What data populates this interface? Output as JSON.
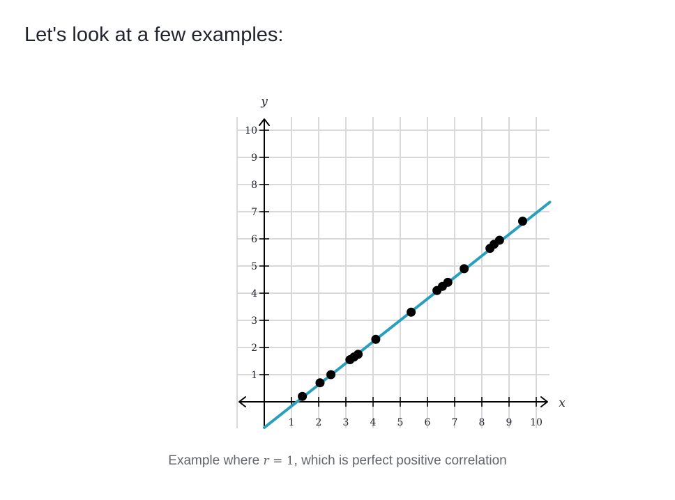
{
  "heading": "Let's look at a few examples:",
  "caption": {
    "prefix": "Example where ",
    "var": "r",
    "eq": "= 1",
    "suffix": ", which is perfect positive correlation"
  },
  "colors": {
    "fit_line": "#2a9fbc",
    "points": "#000000",
    "grid": "#d9d9d9",
    "axis": "#000000"
  },
  "chart_data": {
    "type": "scatter",
    "xlabel": "x",
    "ylabel": "y",
    "xlim": [
      -1,
      10.5
    ],
    "ylim": [
      -1,
      10
    ],
    "x_ticks": [
      1,
      2,
      3,
      4,
      5,
      6,
      7,
      8,
      9,
      10
    ],
    "y_ticks": [
      1,
      2,
      3,
      4,
      5,
      6,
      7,
      8,
      9,
      10
    ],
    "grid": true,
    "points": [
      {
        "x": 1.4,
        "y": 0.2
      },
      {
        "x": 2.05,
        "y": 0.7
      },
      {
        "x": 2.45,
        "y": 1.0
      },
      {
        "x": 3.15,
        "y": 1.55
      },
      {
        "x": 3.3,
        "y": 1.65
      },
      {
        "x": 3.45,
        "y": 1.75
      },
      {
        "x": 4.1,
        "y": 2.3
      },
      {
        "x": 5.4,
        "y": 3.3
      },
      {
        "x": 6.35,
        "y": 4.1
      },
      {
        "x": 6.55,
        "y": 4.25
      },
      {
        "x": 6.75,
        "y": 4.4
      },
      {
        "x": 7.35,
        "y": 4.9
      },
      {
        "x": 8.3,
        "y": 5.65
      },
      {
        "x": 8.45,
        "y": 5.8
      },
      {
        "x": 8.65,
        "y": 5.95
      },
      {
        "x": 9.5,
        "y": 6.65
      }
    ],
    "fit_line": {
      "x1": 0,
      "y1": -0.95,
      "x2": 10.5,
      "y2": 7.35
    }
  }
}
